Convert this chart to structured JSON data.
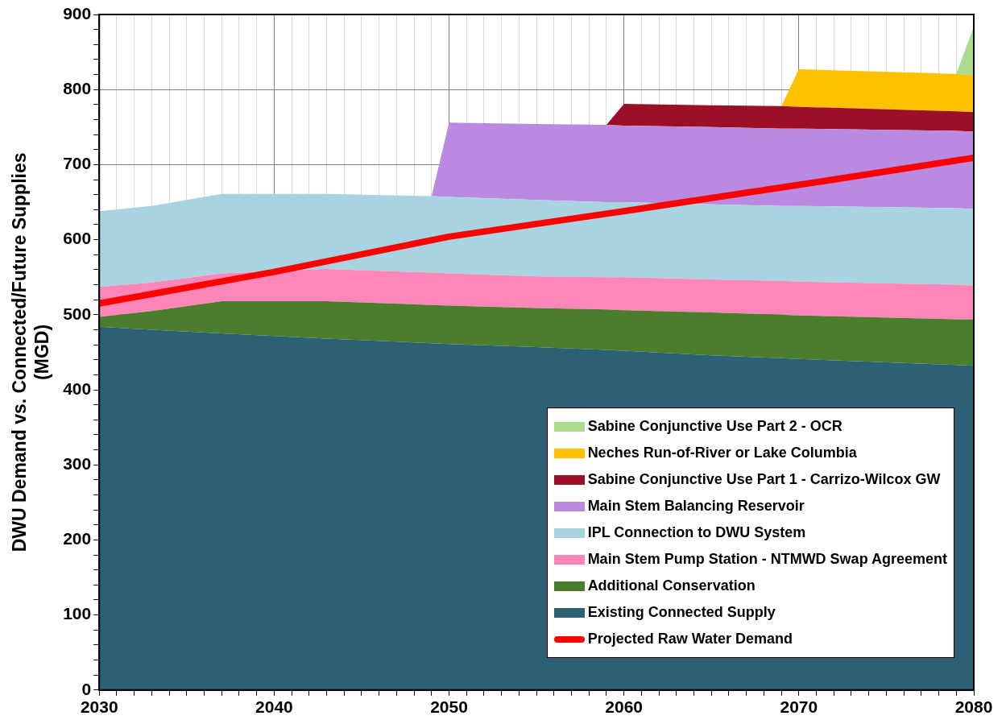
{
  "chart_data": {
    "type": "area",
    "stacked": true,
    "ylabel": "DWU Demand vs. Connected/Future Supplies\n(MGD)",
    "x": [
      2030,
      2033,
      2037,
      2043,
      2049,
      2050,
      2055,
      2059,
      2060,
      2065,
      2069,
      2070,
      2079,
      2080
    ],
    "series": [
      {
        "name": "Existing Connected Supply",
        "color": "#2b6075",
        "values": [
          484,
          480,
          475,
          468,
          462,
          461,
          457,
          453,
          452,
          446,
          442,
          441,
          433,
          432
        ]
      },
      {
        "name": "Additional Conservation",
        "color": "#4a7d2c",
        "values": [
          13,
          25,
          43,
          50,
          51,
          51,
          52,
          54,
          54,
          57,
          58,
          58,
          61,
          62
        ]
      },
      {
        "name": "Main Stem Pump Station - NTMWD Swap Agreement",
        "color": "#ff86b8",
        "values": [
          40,
          38,
          37,
          43,
          43,
          43,
          42,
          43,
          44,
          44,
          45,
          45,
          46,
          45
        ]
      },
      {
        "name": "IPL Connection to DWU System",
        "color": "#a8d3e0",
        "values": [
          101,
          102,
          106,
          100,
          102,
          102,
          102,
          100,
          100,
          100,
          100,
          101,
          102,
          102
        ]
      },
      {
        "name": "Main Stem Balancing Reservoir",
        "color": "#b98ae0",
        "values": [
          null,
          null,
          null,
          null,
          0,
          99,
          101,
          103,
          102,
          103,
          103,
          103,
          103,
          103
        ]
      },
      {
        "name": "Sabine Conjunctive Use Part 1 - Carrizo-Wilcox GW",
        "color": "#9b1026",
        "values": [
          null,
          null,
          null,
          null,
          null,
          null,
          null,
          0,
          29,
          29,
          30,
          29,
          26,
          26
        ]
      },
      {
        "name": "Neches Run-of-River or Lake Columbia",
        "color": "#ffc000",
        "values": [
          null,
          null,
          null,
          null,
          null,
          null,
          null,
          null,
          null,
          null,
          0,
          50,
          50,
          49
        ]
      },
      {
        "name": "Sabine Conjunctive Use Part 2 - OCR",
        "color": "#a9dc8c",
        "values": [
          null,
          null,
          null,
          null,
          null,
          null,
          null,
          null,
          null,
          null,
          null,
          null,
          0,
          65
        ]
      },
      {
        "name": "Projected Raw Water Demand",
        "color": "#ff0000",
        "type": "line",
        "x": [
          2030,
          2040,
          2050,
          2060,
          2070,
          2080
        ],
        "values": [
          515,
          557,
          604,
          638,
          673,
          709
        ]
      }
    ],
    "xlim": [
      2030,
      2080
    ],
    "xticks": [
      2030,
      {
        "value": 2031,
        "label": null
      },
      {
        "value": 2032,
        "label": null
      },
      {
        "value": 2033,
        "label": null
      },
      {
        "value": 2034,
        "label": null
      },
      {
        "value": 2035,
        "label": null
      },
      {
        "value": 2036,
        "label": null
      },
      {
        "value": 2037,
        "label": null
      },
      {
        "value": 2038,
        "label": null
      },
      {
        "value": 2039,
        "label": null
      },
      2040,
      {
        "value": 2041,
        "label": null
      },
      {
        "value": 2042,
        "label": null
      },
      {
        "value": 2043,
        "label": null
      },
      {
        "value": 2044,
        "label": null
      },
      {
        "value": 2045,
        "label": null
      },
      {
        "value": 2046,
        "label": null
      },
      {
        "value": 2047,
        "label": null
      },
      {
        "value": 2048,
        "label": null
      },
      {
        "value": 2049,
        "label": null
      },
      2050,
      {
        "value": 2051,
        "label": null
      },
      {
        "value": 2052,
        "label": null
      },
      {
        "value": 2053,
        "label": null
      },
      {
        "value": 2054,
        "label": null
      },
      {
        "value": 2055,
        "label": null
      },
      {
        "value": 2056,
        "label": null
      },
      {
        "value": 2057,
        "label": null
      },
      {
        "value": 2058,
        "label": null
      },
      {
        "value": 2059,
        "label": null
      },
      2060,
      {
        "value": 2061,
        "label": null
      },
      {
        "value": 2062,
        "label": null
      },
      {
        "value": 2063,
        "label": null
      },
      {
        "value": 2064,
        "label": null
      },
      {
        "value": 2065,
        "label": null
      },
      {
        "value": 2066,
        "label": null
      },
      {
        "value": 2067,
        "label": null
      },
      {
        "value": 2068,
        "label": null
      },
      {
        "value": 2069,
        "label": null
      },
      2070,
      {
        "value": 2071,
        "label": null
      },
      {
        "value": 2072,
        "label": null
      },
      {
        "value": 2073,
        "label": null
      },
      {
        "value": 2074,
        "label": null
      },
      {
        "value": 2075,
        "label": null
      },
      {
        "value": 2076,
        "label": null
      },
      {
        "value": 2077,
        "label": null
      },
      {
        "value": 2078,
        "label": null
      },
      {
        "value": 2079,
        "label": null
      },
      2080
    ],
    "ylim": [
      0,
      900
    ],
    "yticks": [
      0,
      {
        "value": 20,
        "label": null
      },
      {
        "value": 40,
        "label": null
      },
      {
        "value": 60,
        "label": null
      },
      {
        "value": 80,
        "label": null
      },
      100,
      {
        "value": 120,
        "label": null
      },
      {
        "value": 140,
        "label": null
      },
      {
        "value": 160,
        "label": null
      },
      {
        "value": 180,
        "label": null
      },
      200,
      {
        "value": 220,
        "label": null
      },
      {
        "value": 240,
        "label": null
      },
      {
        "value": 260,
        "label": null
      },
      {
        "value": 280,
        "label": null
      },
      300,
      {
        "value": 320,
        "label": null
      },
      {
        "value": 340,
        "label": null
      },
      {
        "value": 360,
        "label": null
      },
      {
        "value": 380,
        "label": null
      },
      400,
      {
        "value": 420,
        "label": null
      },
      {
        "value": 440,
        "label": null
      },
      {
        "value": 460,
        "label": null
      },
      {
        "value": 480,
        "label": null
      },
      500,
      {
        "value": 520,
        "label": null
      },
      {
        "value": 540,
        "label": null
      },
      {
        "value": 560,
        "label": null
      },
      {
        "value": 580,
        "label": null
      },
      600,
      {
        "value": 620,
        "label": null
      },
      {
        "value": 640,
        "label": null
      },
      {
        "value": 660,
        "label": null
      },
      {
        "value": 680,
        "label": null
      },
      700,
      {
        "value": 720,
        "label": null
      },
      {
        "value": 740,
        "label": null
      },
      {
        "value": 760,
        "label": null
      },
      {
        "value": 780,
        "label": null
      },
      800,
      {
        "value": 820,
        "label": null
      },
      {
        "value": 840,
        "label": null
      },
      {
        "value": 860,
        "label": null
      },
      {
        "value": 880,
        "label": null
      },
      900
    ],
    "grid": true,
    "legend": "bottom right",
    "marker": "none"
  }
}
